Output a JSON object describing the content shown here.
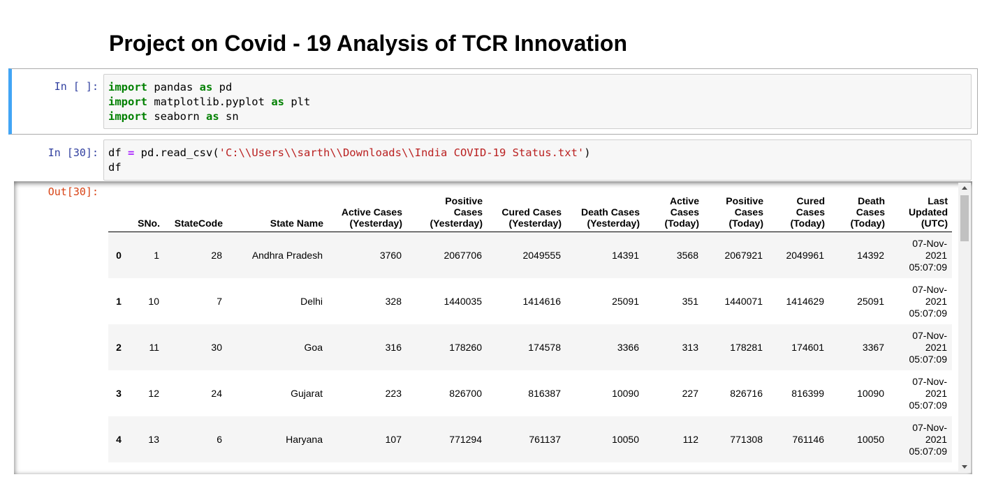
{
  "heading": "Project on Covid - 19 Analysis of TCR Innovation",
  "cells": [
    {
      "prompt": "In [ ]:",
      "lines": [
        [
          "import",
          " pandas ",
          "as",
          " pd"
        ],
        [
          "import",
          " matplotlib.pyplot ",
          "as",
          " plt"
        ],
        [
          "import",
          " seaborn ",
          "as",
          " sn"
        ]
      ]
    },
    {
      "prompt": "In [30]:",
      "lines": [
        [
          "df ",
          "=",
          " pd.read_csv(",
          "'C:\\\\Users\\\\sarth\\\\Downloads\\\\India COVID-19 Status.txt'",
          ")"
        ],
        [
          "df"
        ]
      ],
      "output_prompt": "Out[30]:"
    }
  ],
  "table": {
    "columns": [
      "SNo.",
      "StateCode",
      "State Name",
      "Active Cases (Yesterday)",
      "Positive Cases (Yesterday)",
      "Cured Cases (Yesterday)",
      "Death Cases (Yesterday)",
      "Active Cases (Today)",
      "Positive Cases (Today)",
      "Cured Cases (Today)",
      "Death Cases (Today)",
      "Last Updated (UTC)"
    ],
    "rows": [
      [
        0,
        1,
        28,
        "Andhra Pradesh",
        3760,
        2067706,
        2049555,
        14391,
        3568,
        2067921,
        2049961,
        14392,
        "07-Nov-2021 05:07:09"
      ],
      [
        1,
        10,
        7,
        "Delhi",
        328,
        1440035,
        1414616,
        25091,
        351,
        1440071,
        1414629,
        25091,
        "07-Nov-2021 05:07:09"
      ],
      [
        2,
        11,
        30,
        "Goa",
        316,
        178260,
        174578,
        3366,
        313,
        178281,
        174601,
        3367,
        "07-Nov-2021 05:07:09"
      ],
      [
        3,
        12,
        24,
        "Gujarat",
        223,
        826700,
        816387,
        10090,
        227,
        826716,
        816399,
        10090,
        "07-Nov-2021 05:07:09"
      ],
      [
        4,
        13,
        6,
        "Haryana",
        107,
        771294,
        761137,
        10050,
        112,
        771308,
        761146,
        10050,
        "07-Nov-2021 05:07:09"
      ]
    ]
  }
}
